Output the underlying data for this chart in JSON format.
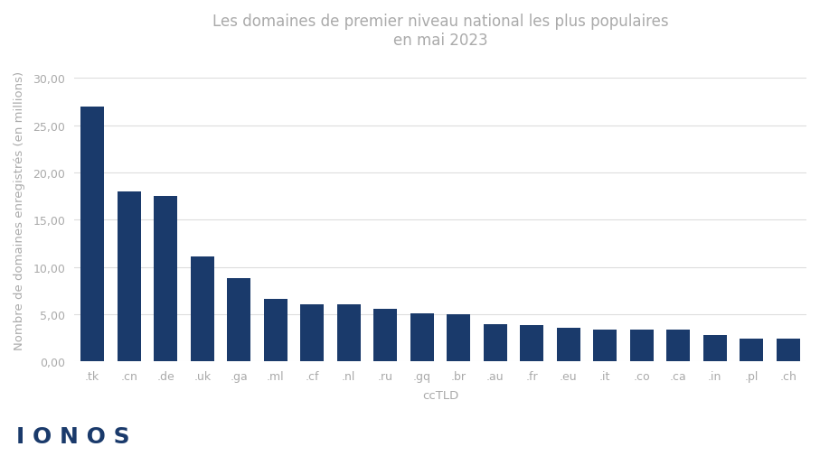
{
  "title": "Les domaines de premier niveau national les plus populaires\nen mai 2023",
  "xlabel": "ccTLD",
  "ylabel": "Nombre de domaines enregistrés (en millions)",
  "categories": [
    ".tk",
    ".cn",
    ".de",
    ".uk",
    ".ga",
    ".ml",
    ".cf",
    ".nl",
    ".ru",
    ".gq",
    ".br",
    ".au",
    ".fr",
    ".eu",
    ".it",
    ".co",
    ".ca",
    ".in",
    ".pl",
    ".ch"
  ],
  "values": [
    27.0,
    18.0,
    17.5,
    11.1,
    8.8,
    6.6,
    6.1,
    6.1,
    5.6,
    5.1,
    5.0,
    4.0,
    3.9,
    3.6,
    3.4,
    3.4,
    3.4,
    2.8,
    2.4,
    2.4
  ],
  "bar_color": "#1a3a6b",
  "background_color": "#ffffff",
  "ylim": [
    0,
    32
  ],
  "yticks": [
    0,
    5,
    10,
    15,
    20,
    25,
    30
  ],
  "ytick_labels": [
    "0,00",
    "5,00",
    "10,00",
    "15,00",
    "20,00",
    "25,00",
    "30,00"
  ],
  "title_color": "#aaaaaa",
  "axis_label_color": "#aaaaaa",
  "tick_color": "#aaaaaa",
  "grid_color": "#dddddd",
  "logo_text": "I O N O S",
  "logo_color": "#1a3a6b",
  "title_fontsize": 12,
  "axis_label_fontsize": 9.5,
  "tick_fontsize": 9
}
